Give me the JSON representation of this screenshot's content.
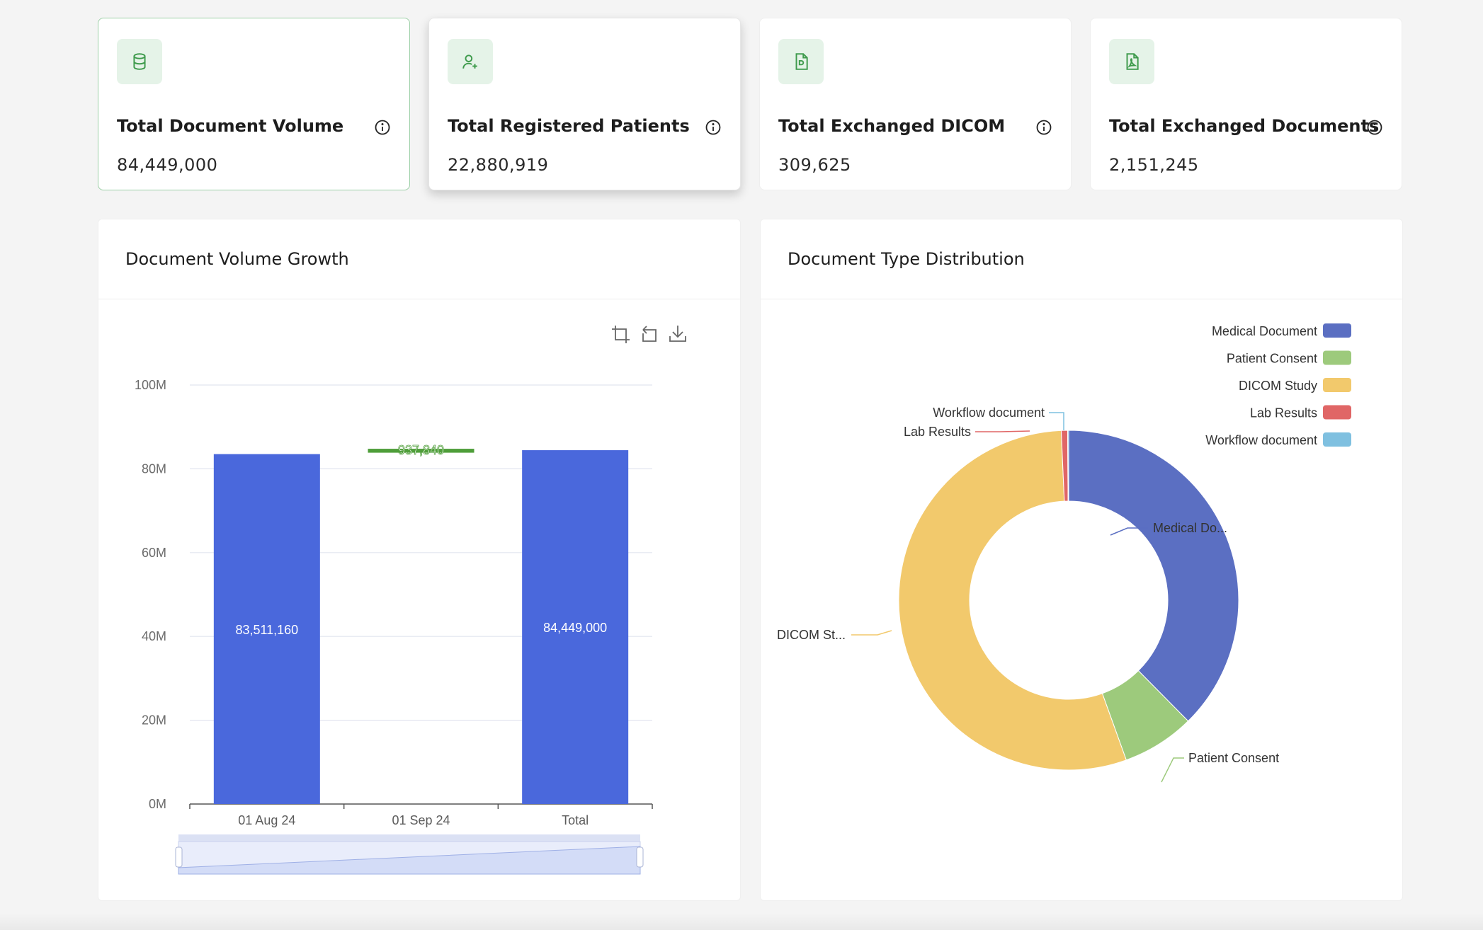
{
  "kpis": [
    {
      "title": "Total Document Volume",
      "value": "84,449,000",
      "icon": "database-icon"
    },
    {
      "title": "Total Registered Patients",
      "value": "22,880,919",
      "icon": "user-plus-icon"
    },
    {
      "title": "Total Exchanged DICOM",
      "value": "309,625",
      "icon": "dicom-file-icon"
    },
    {
      "title": "Total Exchanged Documents",
      "value": "2,151,245",
      "icon": "pdf-file-icon"
    }
  ],
  "bar_panel": {
    "title": "Document Volume Growth"
  },
  "pie_panel": {
    "title": "Document Type Distribution"
  },
  "colors": {
    "accent_green": "#3f9b4d",
    "icon_bg": "#e5f3e8",
    "bar_blue": "#4a68dc",
    "waterfall_green": "#4f9e3a"
  },
  "chart_data": [
    {
      "type": "bar",
      "subtype": "waterfall",
      "categories": [
        "01 Aug 24",
        "01 Sep 24",
        "Total"
      ],
      "values": [
        83511160,
        937840,
        84449000
      ],
      "value_labels": [
        "83,511,160",
        "937,840",
        "84,449,000"
      ],
      "bases": [
        0,
        83511160,
        0
      ],
      "ylim": [
        0,
        100000000
      ],
      "yticks": [
        0,
        20000000,
        40000000,
        60000000,
        80000000,
        100000000
      ],
      "ytick_labels": [
        "0M",
        "20M",
        "40M",
        "60M",
        "80M",
        "100M"
      ],
      "grid": true,
      "toolbox": [
        "zoom-icon",
        "restore-icon",
        "download-icon"
      ],
      "data_zoom": true
    },
    {
      "type": "pie",
      "subtype": "donut",
      "slices": [
        {
          "name": "Medical Document",
          "value": 37.6,
          "color": "#5b6fc2",
          "label": "Medical Do..."
        },
        {
          "name": "Patient Consent",
          "value": 6.9,
          "color": "#9dca7c",
          "label": "Patient Consent"
        },
        {
          "name": "DICOM Study",
          "value": 54.8,
          "color": "#f2c96c",
          "label": "DICOM St..."
        },
        {
          "name": "Lab Results",
          "value": 0.6,
          "color": "#e06666",
          "label": "Lab Results"
        },
        {
          "name": "Workflow document",
          "value": 0.1,
          "color": "#7fc0e0",
          "label": "Workflow document"
        }
      ],
      "legend": [
        "Medical Document",
        "Patient Consent",
        "DICOM Study",
        "Lab Results",
        "Workflow document"
      ],
      "legend_position": "top-right"
    }
  ]
}
